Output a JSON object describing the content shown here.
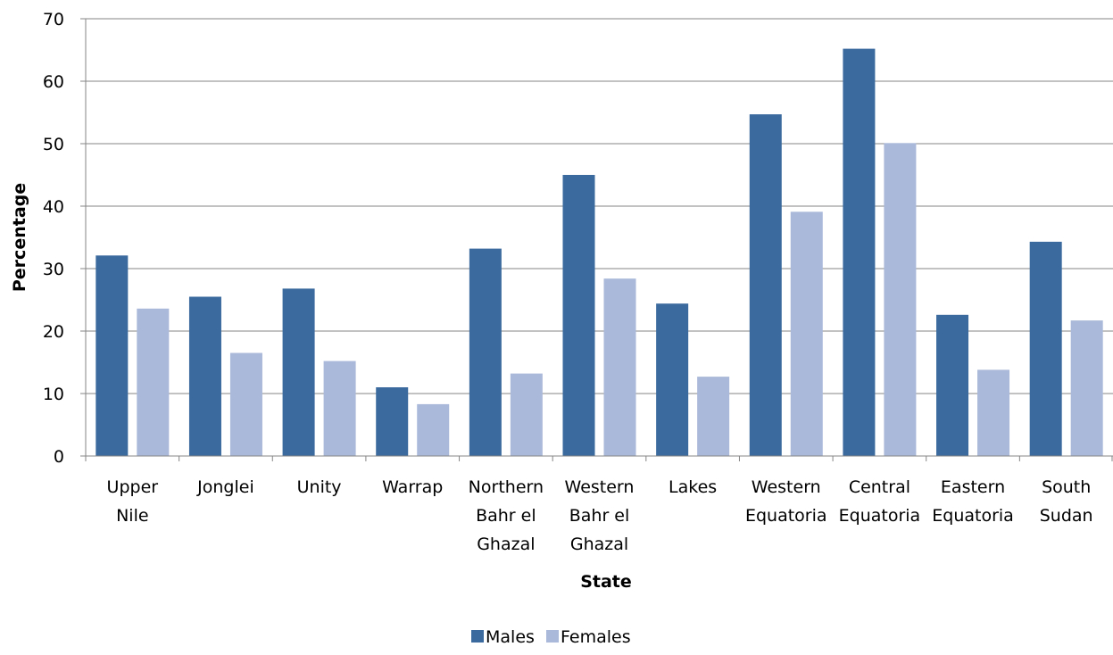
{
  "chart_data": {
    "type": "bar",
    "title": "",
    "xlabel": "State",
    "ylabel": "Percentage",
    "ylim": [
      0,
      70
    ],
    "yticks": [
      0,
      10,
      20,
      30,
      40,
      50,
      60,
      70
    ],
    "grid": true,
    "legend_position": "bottom",
    "categories": [
      [
        "Upper",
        "Nile"
      ],
      [
        "Jonglei"
      ],
      [
        "Unity"
      ],
      [
        "Warrap"
      ],
      [
        "Northern",
        "Bahr el",
        "Ghazal"
      ],
      [
        "Western",
        "Bahr el",
        "Ghazal"
      ],
      [
        "Lakes"
      ],
      [
        "Western",
        "Equatoria"
      ],
      [
        "Central",
        "Equatoria"
      ],
      [
        "Eastern",
        "Equatoria"
      ],
      [
        "South",
        "Sudan"
      ]
    ],
    "series": [
      {
        "name": "Males",
        "color": "#3B6A9E",
        "values": [
          32.1,
          25.5,
          26.8,
          11.0,
          33.2,
          45.0,
          24.4,
          54.7,
          65.2,
          22.6,
          34.3
        ]
      },
      {
        "name": "Females",
        "color": "#AAB9D9",
        "values": [
          23.6,
          16.5,
          15.2,
          8.3,
          13.2,
          28.4,
          12.7,
          39.1,
          50.1,
          13.8,
          21.7
        ]
      }
    ]
  }
}
